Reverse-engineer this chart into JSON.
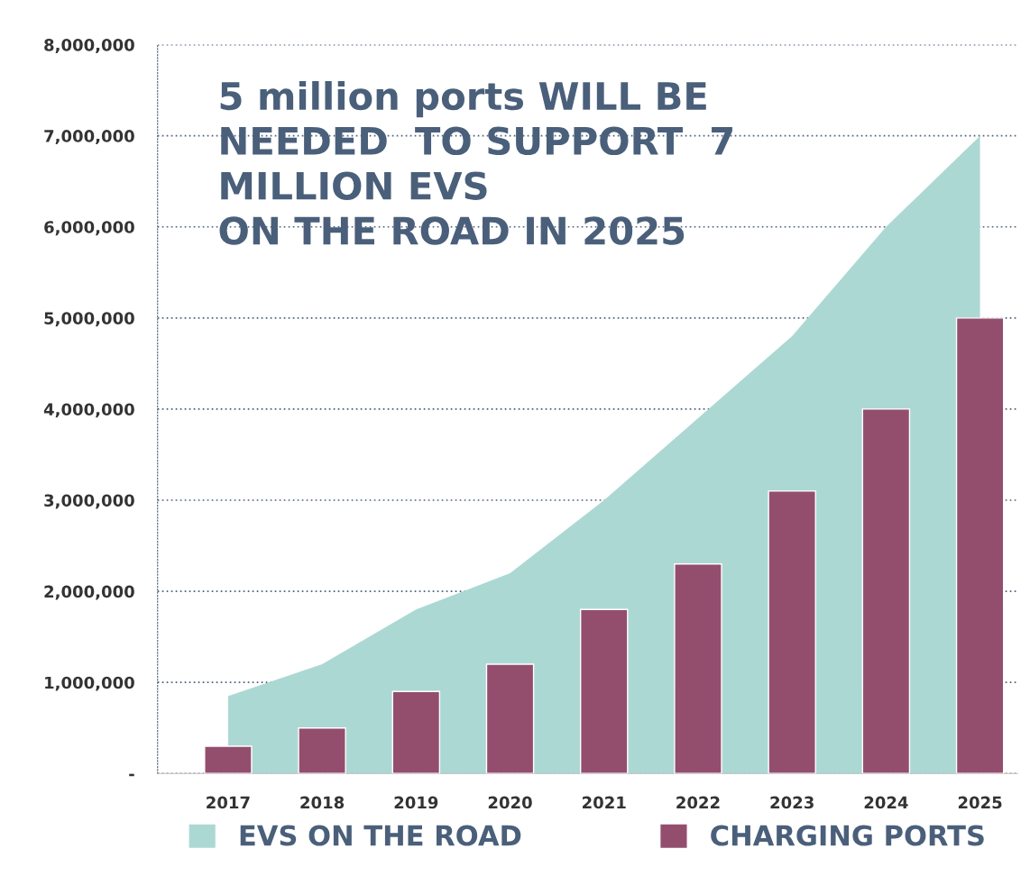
{
  "chart_data": {
    "type": "bar",
    "categories": [
      "2017",
      "2018",
      "2019",
      "2020",
      "2021",
      "2022",
      "2023",
      "2024",
      "2025"
    ],
    "series": [
      {
        "name": "EVS ON THE ROAD",
        "type": "area",
        "color": "#acd8d4",
        "values": [
          850000,
          1200000,
          1800000,
          2200000,
          3000000,
          3900000,
          4800000,
          6000000,
          7000000
        ]
      },
      {
        "name": "CHARGING PORTS",
        "color": "#934e6e",
        "values": [
          300000,
          500000,
          900000,
          1200000,
          1800000,
          2300000,
          3100000,
          4000000,
          5000000
        ]
      }
    ],
    "ylim": [
      0,
      8000000
    ],
    "yticks": [
      {
        "value": 0,
        "label": "-"
      },
      {
        "value": 1000000,
        "label": "1,000,000"
      },
      {
        "value": 2000000,
        "label": "2,000,000"
      },
      {
        "value": 3000000,
        "label": "3,000,000"
      },
      {
        "value": 4000000,
        "label": "4,000,000"
      },
      {
        "value": 5000000,
        "label": "5,000,000"
      },
      {
        "value": 6000000,
        "label": "6,000,000"
      },
      {
        "value": 7000000,
        "label": "7,000,000"
      },
      {
        "value": 8000000,
        "label": "8,000,000"
      }
    ],
    "annotations": [
      "5 million ports WILL BE\nNEEDED  TO SUPPORT  7\nMILLION EVS\nON THE ROAD IN 2025"
    ],
    "grid": "y",
    "legend": "bottom"
  }
}
